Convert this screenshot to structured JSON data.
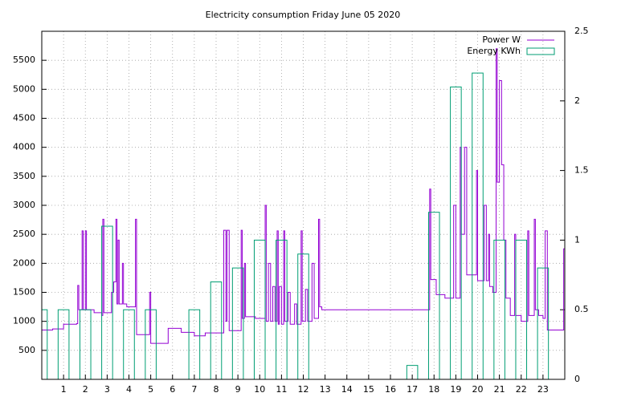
{
  "chart_data": {
    "type": "line",
    "title": "Electricity consumption Friday June 05 2020",
    "xlim": [
      0,
      24
    ],
    "xticks": [
      1,
      2,
      3,
      4,
      5,
      6,
      7,
      8,
      9,
      10,
      11,
      12,
      13,
      14,
      15,
      16,
      17,
      18,
      19,
      20,
      21,
      22,
      23
    ],
    "ylim": [
      0,
      6000
    ],
    "yticks": [
      500,
      1000,
      1500,
      2000,
      2500,
      3000,
      3500,
      4000,
      4500,
      5000,
      5500
    ],
    "y2lim": [
      0,
      2.5
    ],
    "y2ticks": [
      0,
      0.5,
      1,
      1.5,
      2,
      2.5
    ],
    "grid": true,
    "legend": "top-right",
    "steps": true,
    "series": [
      {
        "name": "Power W",
        "color": "#9400d3",
        "type": "line",
        "x": [
          0,
          0.5,
          1.0,
          1.6,
          1.65,
          1.7,
          1.85,
          1.9,
          2.0,
          2.05,
          2.4,
          2.75,
          2.8,
          2.85,
          3.2,
          3.3,
          3.4,
          3.45,
          3.5,
          3.55,
          3.7,
          3.75,
          3.9,
          4.3,
          4.35,
          4.9,
          4.95,
          5.0,
          5.7,
          5.8,
          6.4,
          7.0,
          7.5,
          8.3,
          8.35,
          8.45,
          8.5,
          8.6,
          9.1,
          9.15,
          9.2,
          9.3,
          9.35,
          9.8,
          10.2,
          10.25,
          10.3,
          10.4,
          10.5,
          10.6,
          10.7,
          10.8,
          10.85,
          10.9,
          11.0,
          11.1,
          11.15,
          11.3,
          11.4,
          11.6,
          11.7,
          11.9,
          11.95,
          12.1,
          12.2,
          12.4,
          12.5,
          12.7,
          12.75,
          12.85,
          17.75,
          17.8,
          17.85,
          18.1,
          18.5,
          18.9,
          19.0,
          19.2,
          19.25,
          19.4,
          19.5,
          19.8,
          19.95,
          20.0,
          20.3,
          20.4,
          20.5,
          20.55,
          20.7,
          20.85,
          20.9,
          21.0,
          21.1,
          21.2,
          21.3,
          21.5,
          21.7,
          21.75,
          22.0,
          22.3,
          22.35,
          22.6,
          22.65,
          22.8,
          23.0,
          23.1,
          23.2,
          23.9,
          23.95,
          24
        ],
        "values": [
          850,
          870,
          950,
          960,
          1620,
          1200,
          2560,
          1200,
          2560,
          1200,
          1150,
          1100,
          2760,
          1150,
          1500,
          1680,
          2760,
          1300,
          2400,
          1300,
          2000,
          1300,
          1250,
          2760,
          770,
          770,
          1500,
          620,
          620,
          880,
          810,
          750,
          800,
          800,
          2570,
          1000,
          2570,
          840,
          840,
          2570,
          1050,
          2000,
          1080,
          1050,
          1050,
          3000,
          1000,
          2000,
          1000,
          1600,
          1000,
          2560,
          950,
          1600,
          950,
          2560,
          1000,
          1500,
          950,
          1300,
          950,
          2560,
          1000,
          1550,
          1000,
          2000,
          1050,
          2760,
          1250,
          1200,
          1200,
          3280,
          1720,
          1460,
          1400,
          3000,
          1400,
          4000,
          2500,
          4000,
          1800,
          1800,
          3600,
          1700,
          3000,
          1700,
          2500,
          1600,
          1500,
          5700,
          3400,
          5150,
          3700,
          2400,
          1400,
          1100,
          2500,
          1100,
          1000,
          2560,
          1100,
          2760,
          1200,
          1100,
          1050,
          2560,
          850,
          850,
          2250,
          900
        ]
      },
      {
        "name": "Energy KWh",
        "color": "#009e73",
        "type": "bar",
        "axis": "y2",
        "x": [
          0,
          1,
          2,
          3,
          4,
          5,
          6,
          7,
          8,
          9,
          10,
          11,
          12,
          13,
          14,
          15,
          16,
          17,
          18,
          19,
          20,
          21,
          22,
          23
        ],
        "values": [
          0.5,
          0.5,
          0.5,
          1.1,
          0.5,
          0.5,
          0,
          0.5,
          0.7,
          0.8,
          1.0,
          1.0,
          0.9,
          0,
          0,
          0,
          0,
          0.1,
          1.2,
          2.1,
          2.2,
          1.0,
          1.0,
          0.8
        ]
      }
    ]
  }
}
